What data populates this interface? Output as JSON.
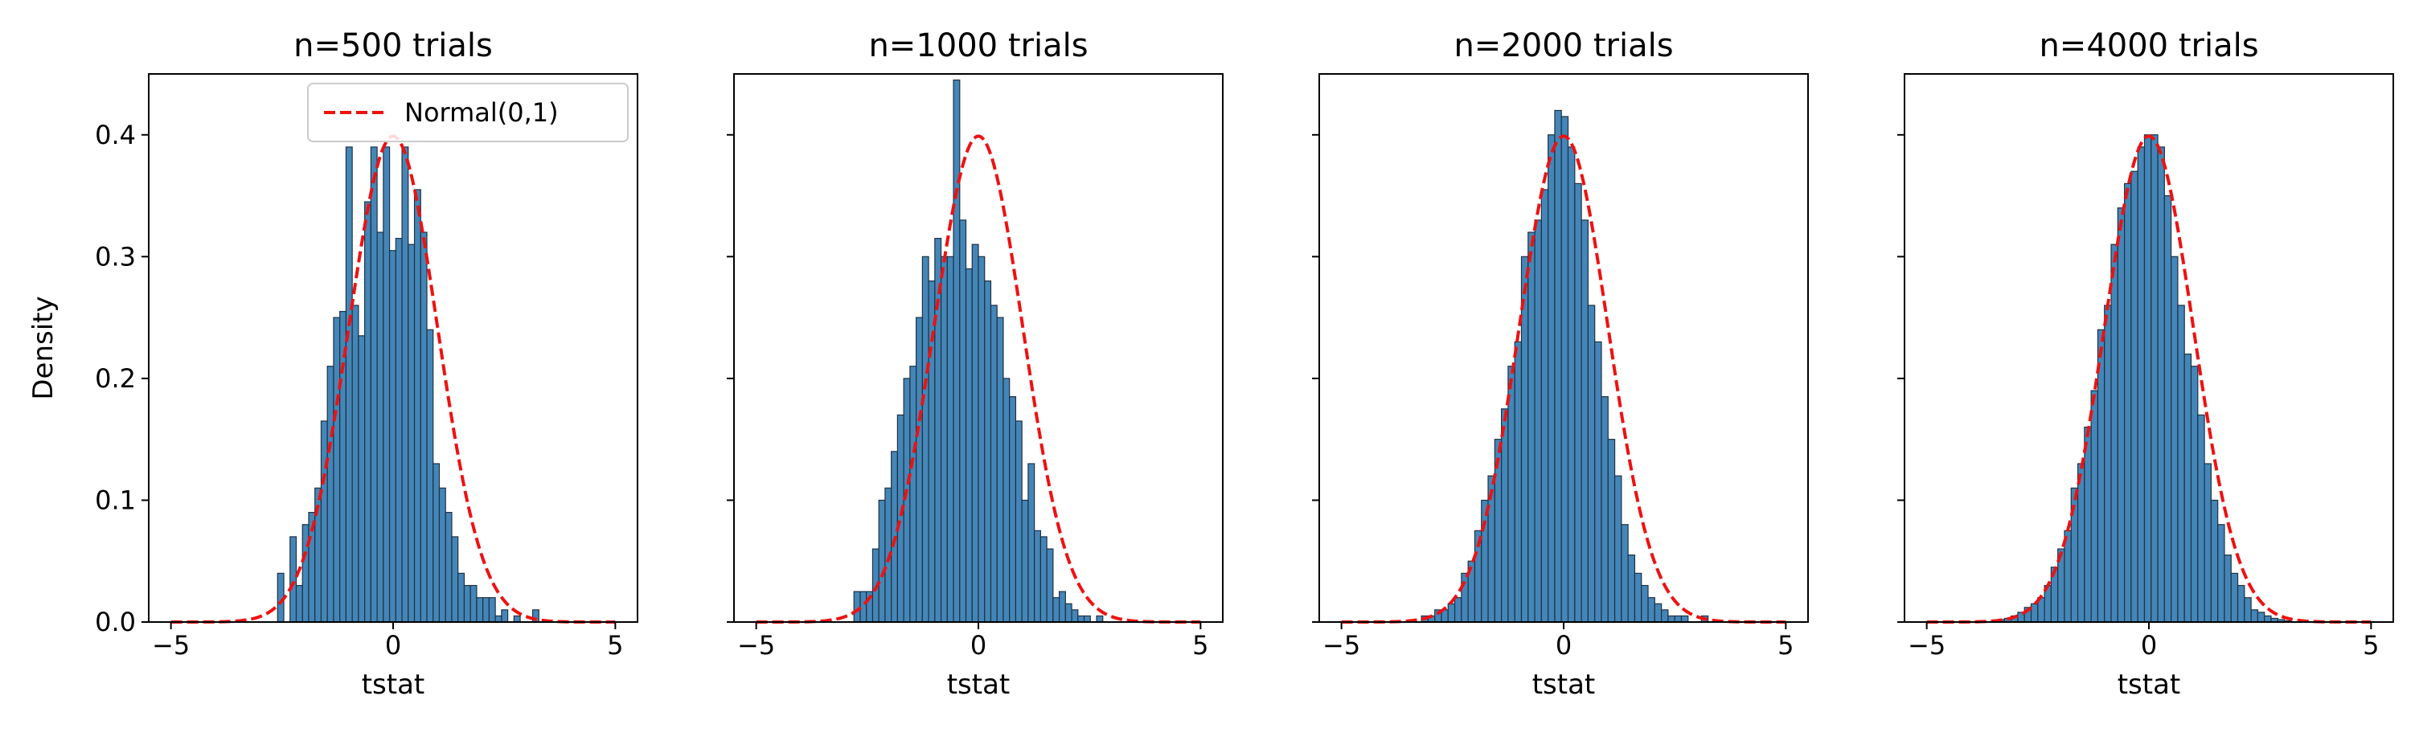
{
  "figure": {
    "shared_ylabel": "Density"
  },
  "chart_data": [
    {
      "type": "bar",
      "title": "n=500 trials",
      "xlabel": "tstat",
      "ylabel": "Density",
      "xlim": [
        -5.5,
        5.5
      ],
      "ylim": [
        0,
        0.45
      ],
      "xticks": [
        -5,
        0,
        5
      ],
      "yticks": [
        0.0,
        0.1,
        0.2,
        0.3,
        0.4
      ],
      "bin_edges": [
        -2.6,
        -2.46,
        -2.32,
        -2.18,
        -2.04,
        -1.9,
        -1.76,
        -1.62,
        -1.48,
        -1.34,
        -1.2,
        -1.06,
        -0.92,
        -0.78,
        -0.64,
        -0.5,
        -0.36,
        -0.22,
        -0.08,
        0.06,
        0.2,
        0.34,
        0.48,
        0.62,
        0.76,
        0.9,
        1.04,
        1.18,
        1.32,
        1.46,
        1.6,
        1.74,
        1.88,
        2.02,
        2.16,
        2.3,
        2.44,
        2.58,
        2.72,
        2.86,
        3.0,
        3.14,
        3.28
      ],
      "values": [
        0.04,
        0.0,
        0.07,
        0.03,
        0.08,
        0.09,
        0.11,
        0.165,
        0.21,
        0.25,
        0.255,
        0.39,
        0.26,
        0.235,
        0.345,
        0.39,
        0.32,
        0.39,
        0.305,
        0.315,
        0.39,
        0.31,
        0.355,
        0.32,
        0.24,
        0.13,
        0.11,
        0.09,
        0.07,
        0.04,
        0.03,
        0.03,
        0.02,
        0.02,
        0.02,
        0.005,
        0.01,
        0.0,
        0.005,
        0.0,
        0.0,
        0.01
      ],
      "series": [
        {
          "name": "Normal(0,1)",
          "kind": "line",
          "color": "#ee1111",
          "dash": "dashed"
        }
      ],
      "legend": {
        "position": "top-right",
        "label": "Normal(0,1)"
      },
      "bar_color": "#3a7fb4",
      "grid": false
    },
    {
      "type": "bar",
      "title": "n=1000 trials",
      "xlabel": "tstat",
      "ylabel": "",
      "xlim": [
        -5.5,
        5.5
      ],
      "ylim": [
        0,
        0.45
      ],
      "xticks": [
        -5,
        0,
        5
      ],
      "yticks": [
        0.0,
        0.1,
        0.2,
        0.3,
        0.4
      ],
      "bin_edges": [
        -2.8,
        -2.66,
        -2.52,
        -2.38,
        -2.24,
        -2.1,
        -1.96,
        -1.82,
        -1.68,
        -1.54,
        -1.4,
        -1.26,
        -1.12,
        -0.98,
        -0.84,
        -0.7,
        -0.56,
        -0.42,
        -0.28,
        -0.14,
        0.0,
        0.14,
        0.28,
        0.42,
        0.56,
        0.7,
        0.84,
        0.98,
        1.12,
        1.26,
        1.4,
        1.54,
        1.68,
        1.82,
        1.96,
        2.1,
        2.24,
        2.38,
        2.52,
        2.66,
        2.8
      ],
      "values": [
        0.025,
        0.025,
        0.025,
        0.06,
        0.1,
        0.11,
        0.14,
        0.17,
        0.2,
        0.21,
        0.25,
        0.3,
        0.28,
        0.315,
        0.3,
        0.3,
        0.445,
        0.33,
        0.29,
        0.31,
        0.3,
        0.28,
        0.26,
        0.25,
        0.2,
        0.185,
        0.165,
        0.1,
        0.13,
        0.075,
        0.07,
        0.06,
        0.02,
        0.025,
        0.015,
        0.01,
        0.005,
        0.005,
        0.0,
        0.005
      ],
      "series": [
        {
          "name": "Normal(0,1)",
          "kind": "line",
          "color": "#ee1111",
          "dash": "dashed"
        }
      ],
      "bar_color": "#3a7fb4",
      "grid": false
    },
    {
      "type": "bar",
      "title": "n=2000 trials",
      "xlabel": "tstat",
      "ylabel": "",
      "xlim": [
        -5.5,
        5.5
      ],
      "ylim": [
        0,
        0.45
      ],
      "xticks": [
        -5,
        0,
        5
      ],
      "yticks": [
        0.0,
        0.1,
        0.2,
        0.3,
        0.4
      ],
      "bin_edges": [
        -3.2,
        -3.05,
        -2.9,
        -2.75,
        -2.6,
        -2.45,
        -2.3,
        -2.15,
        -2.0,
        -1.85,
        -1.7,
        -1.55,
        -1.4,
        -1.25,
        -1.1,
        -0.95,
        -0.8,
        -0.65,
        -0.5,
        -0.35,
        -0.2,
        -0.05,
        0.1,
        0.25,
        0.4,
        0.55,
        0.7,
        0.85,
        1.0,
        1.15,
        1.3,
        1.45,
        1.6,
        1.75,
        1.9,
        2.05,
        2.2,
        2.35,
        2.5,
        2.65,
        2.8,
        2.95,
        3.1,
        3.25
      ],
      "values": [
        0.005,
        0.005,
        0.01,
        0.01,
        0.015,
        0.02,
        0.04,
        0.05,
        0.075,
        0.1,
        0.12,
        0.15,
        0.175,
        0.21,
        0.23,
        0.3,
        0.32,
        0.33,
        0.355,
        0.4,
        0.42,
        0.415,
        0.39,
        0.36,
        0.33,
        0.26,
        0.23,
        0.185,
        0.15,
        0.12,
        0.08,
        0.055,
        0.04,
        0.03,
        0.02,
        0.015,
        0.01,
        0.005,
        0.005,
        0.005,
        0.0,
        0.0,
        0.005
      ],
      "series": [
        {
          "name": "Normal(0,1)",
          "kind": "line",
          "color": "#ee1111",
          "dash": "dashed"
        }
      ],
      "bar_color": "#3a7fb4",
      "grid": false
    },
    {
      "type": "bar",
      "title": "n=4000 trials",
      "xlabel": "tstat",
      "ylabel": "",
      "xlim": [
        -5.5,
        5.5
      ],
      "ylim": [
        0,
        0.45
      ],
      "xticks": [
        -5,
        0,
        5
      ],
      "yticks": [
        0.0,
        0.1,
        0.2,
        0.3,
        0.4
      ],
      "bin_edges": [
        -3.4,
        -3.25,
        -3.1,
        -2.95,
        -2.8,
        -2.65,
        -2.5,
        -2.35,
        -2.2,
        -2.05,
        -1.9,
        -1.75,
        -1.6,
        -1.45,
        -1.3,
        -1.15,
        -1.0,
        -0.85,
        -0.7,
        -0.55,
        -0.4,
        -0.25,
        -0.1,
        0.05,
        0.2,
        0.35,
        0.5,
        0.65,
        0.8,
        0.95,
        1.1,
        1.25,
        1.4,
        1.55,
        1.7,
        1.85,
        2.0,
        2.15,
        2.3,
        2.45,
        2.6,
        2.75,
        2.9,
        3.05,
        3.2
      ],
      "values": [
        0.002,
        0.003,
        0.005,
        0.008,
        0.012,
        0.015,
        0.02,
        0.03,
        0.045,
        0.06,
        0.075,
        0.11,
        0.13,
        0.16,
        0.19,
        0.24,
        0.26,
        0.31,
        0.34,
        0.36,
        0.37,
        0.39,
        0.4,
        0.4,
        0.39,
        0.35,
        0.3,
        0.26,
        0.22,
        0.21,
        0.17,
        0.13,
        0.1,
        0.08,
        0.055,
        0.04,
        0.03,
        0.02,
        0.01,
        0.008,
        0.005,
        0.003,
        0.002,
        0.001
      ],
      "series": [
        {
          "name": "Normal(0,1)",
          "kind": "line",
          "color": "#ee1111",
          "dash": "dashed"
        }
      ],
      "bar_color": "#3a7fb4",
      "grid": false
    }
  ]
}
